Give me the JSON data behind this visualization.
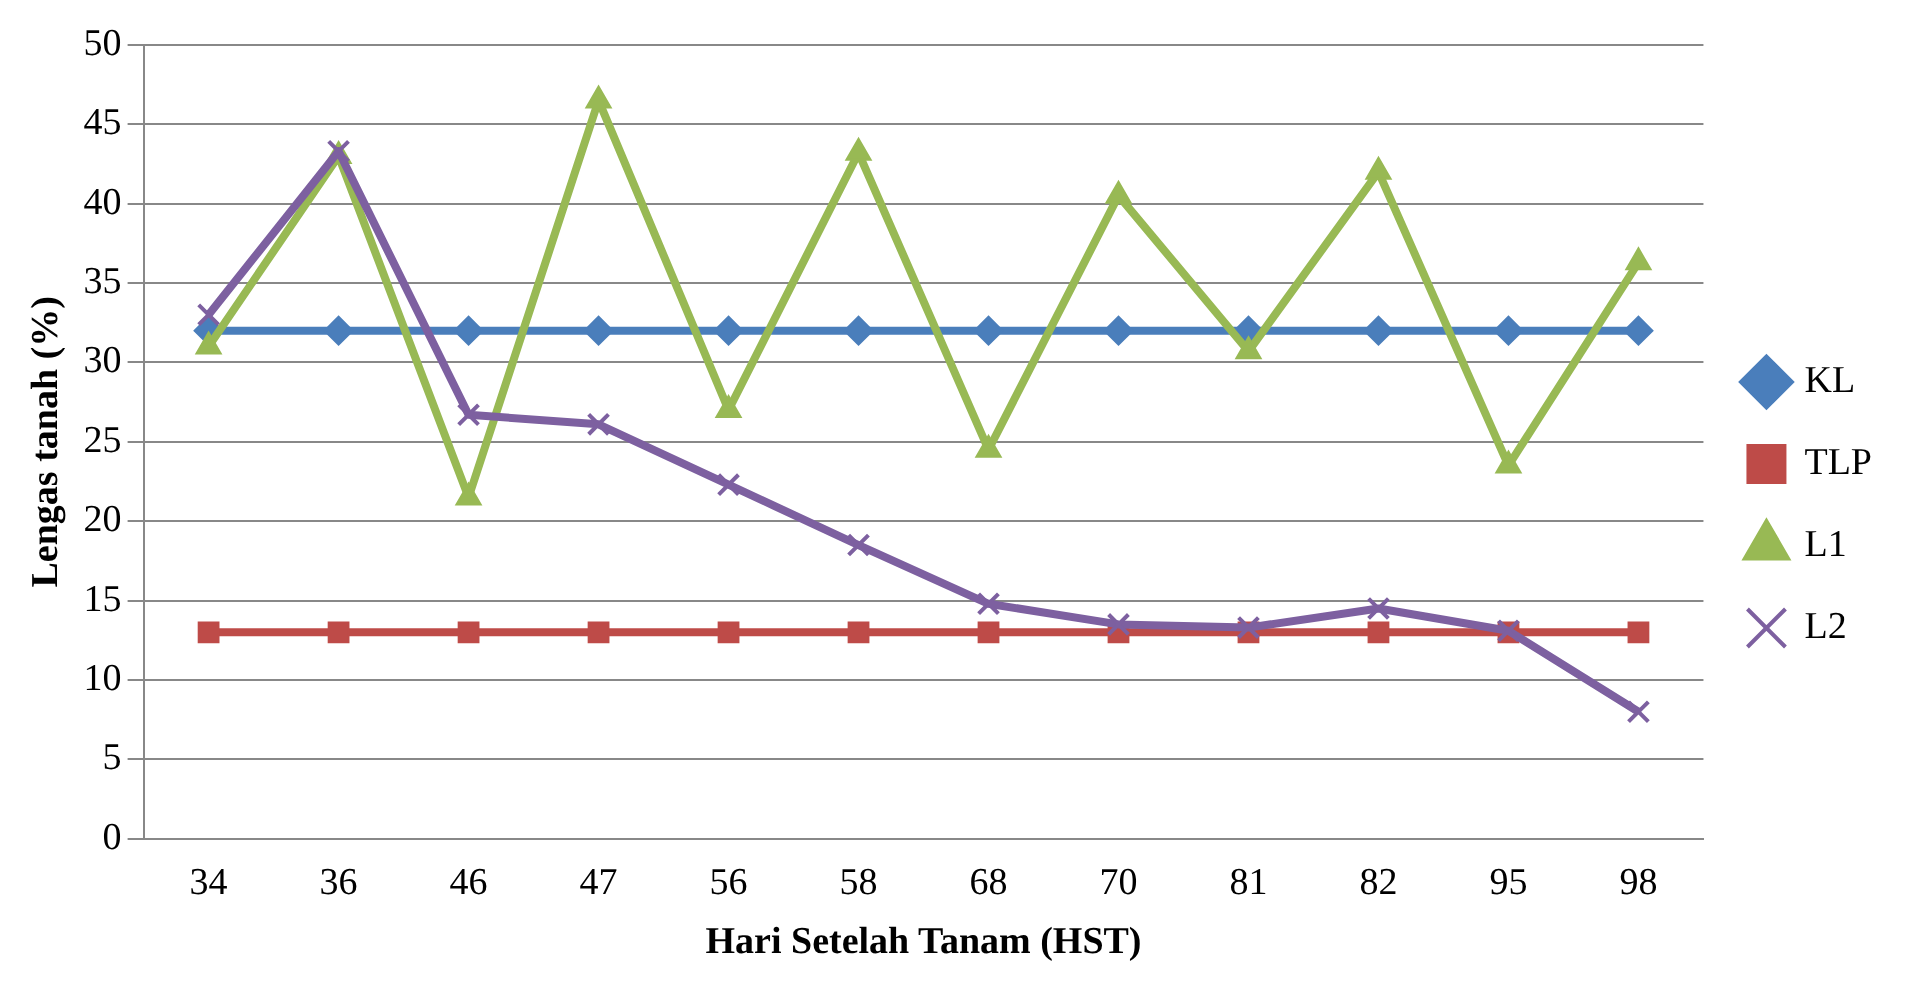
{
  "chart_data": {
    "type": "line",
    "xlabel": "Hari Setelah Tanam (HST)",
    "ylabel": "Lengas tanah (%)",
    "categories": [
      "34",
      "36",
      "46",
      "47",
      "56",
      "58",
      "68",
      "70",
      "81",
      "82",
      "95",
      "98"
    ],
    "series": [
      {
        "name": "KL",
        "color": "#4a7ebb",
        "marker": "diamond",
        "values": [
          32,
          32,
          32,
          32,
          32,
          32,
          32,
          32,
          32,
          32,
          32,
          32
        ]
      },
      {
        "name": "TLP",
        "color": "#be4b48",
        "marker": "square",
        "values": [
          13,
          13,
          13,
          13,
          13,
          13,
          13,
          13,
          13,
          13,
          13,
          13
        ]
      },
      {
        "name": "L1",
        "color": "#98b954",
        "marker": "triangle",
        "values": [
          31,
          43,
          21.5,
          46.5,
          27,
          43.2,
          24.5,
          40.5,
          30.7,
          42,
          23.5,
          36.3
        ]
      },
      {
        "name": "L2",
        "color": "#7d60a0",
        "marker": "cross",
        "values": [
          33,
          43.3,
          26.7,
          26.1,
          22.3,
          18.5,
          14.8,
          13.5,
          13.3,
          14.5,
          13.1,
          8
        ]
      }
    ],
    "ylim": [
      0,
      50
    ],
    "yticks": [
      0,
      5,
      10,
      15,
      20,
      25,
      30,
      35,
      40,
      45,
      50
    ],
    "grid": "y",
    "legend": "right"
  }
}
